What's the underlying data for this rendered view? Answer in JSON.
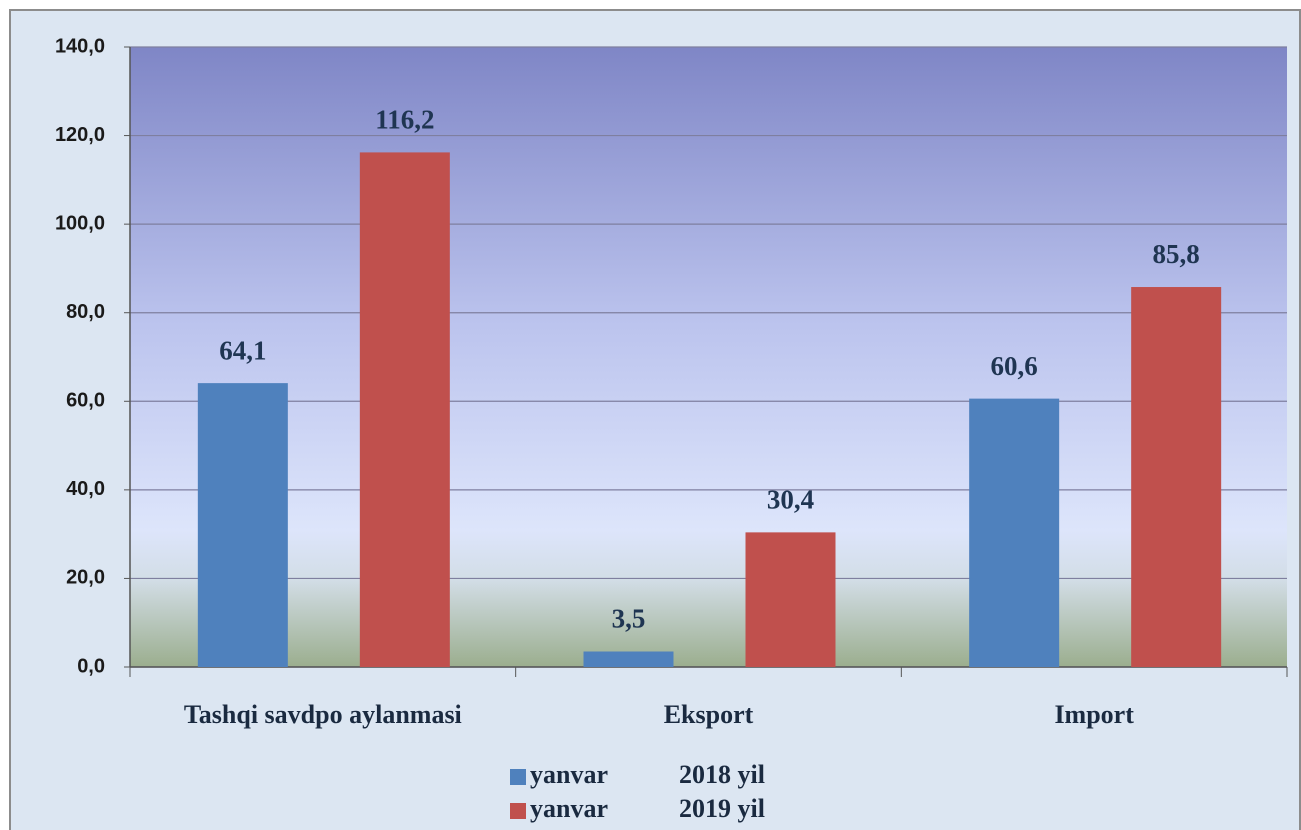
{
  "chart_data": {
    "type": "bar",
    "categories": [
      "Tashqi savdpo aylanmasi",
      "Eksport",
      "Import"
    ],
    "series": [
      {
        "name": "yanvar           2018 yil",
        "color": "#4f81bd",
        "values": [
          64.1,
          3.5,
          60.6
        ],
        "value_labels": [
          "64,1",
          "3,5",
          "60,6"
        ]
      },
      {
        "name": "yanvar           2019 yil",
        "color": "#c0504d",
        "values": [
          116.2,
          30.4,
          85.8
        ],
        "value_labels": [
          "116,2",
          "30,4",
          "85,8"
        ]
      }
    ],
    "ylim": [
      0,
      140
    ],
    "yticks": [
      {
        "value": 0,
        "label": "0,0"
      },
      {
        "value": 20,
        "label": "20,0"
      },
      {
        "value": 40,
        "label": "40,0"
      },
      {
        "value": 60,
        "label": "60,0"
      },
      {
        "value": 80,
        "label": "80,0"
      },
      {
        "value": 100,
        "label": "100,0"
      },
      {
        "value": 120,
        "label": "120,0"
      },
      {
        "value": 140,
        "label": "140,0"
      }
    ],
    "grid": true
  }
}
